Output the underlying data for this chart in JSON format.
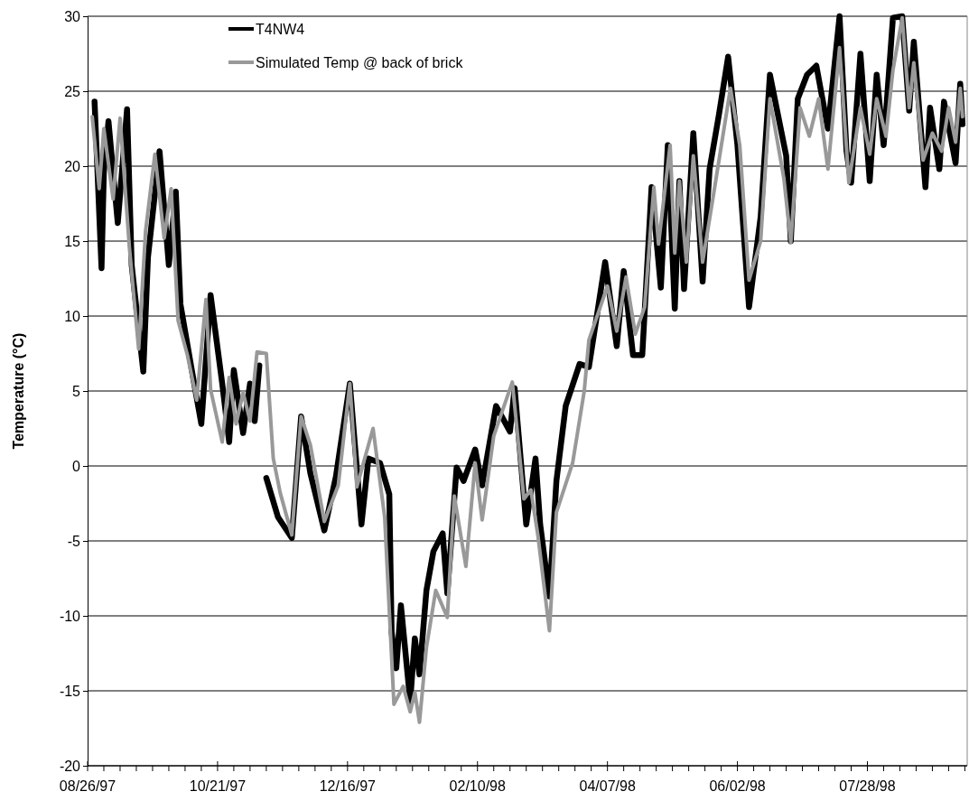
{
  "chart_data": {
    "type": "line",
    "ylabel": "Temperature (°C)",
    "legend": "top",
    "grid": "y",
    "line_style": "solid",
    "marker": "none",
    "xlim": [
      "1997-08-26",
      "1998-09-09"
    ],
    "ylim": [
      -20,
      30
    ],
    "yticks": [
      -20,
      -15,
      -10,
      -5,
      0,
      5,
      10,
      15,
      20,
      25,
      30
    ],
    "xticks": [
      {
        "value": "1997-08-26",
        "label": "08/26/97"
      },
      {
        "value": "1997-09-02",
        "label": null
      },
      {
        "value": "1997-09-09",
        "label": null
      },
      {
        "value": "1997-09-16",
        "label": null
      },
      {
        "value": "1997-09-23",
        "label": null
      },
      {
        "value": "1997-09-30",
        "label": null
      },
      {
        "value": "1997-10-07",
        "label": null
      },
      {
        "value": "1997-10-14",
        "label": null
      },
      {
        "value": "1997-10-21",
        "label": "10/21/97"
      },
      {
        "value": "1997-10-28",
        "label": null
      },
      {
        "value": "1997-11-04",
        "label": null
      },
      {
        "value": "1997-11-11",
        "label": null
      },
      {
        "value": "1997-11-18",
        "label": null
      },
      {
        "value": "1997-11-25",
        "label": null
      },
      {
        "value": "1997-12-02",
        "label": null
      },
      {
        "value": "1997-12-09",
        "label": null
      },
      {
        "value": "1997-12-16",
        "label": "12/16/97"
      },
      {
        "value": "1997-12-23",
        "label": null
      },
      {
        "value": "1997-12-30",
        "label": null
      },
      {
        "value": "1998-01-06",
        "label": null
      },
      {
        "value": "1998-01-13",
        "label": null
      },
      {
        "value": "1998-01-20",
        "label": null
      },
      {
        "value": "1998-01-27",
        "label": null
      },
      {
        "value": "1998-02-03",
        "label": null
      },
      {
        "value": "1998-02-10",
        "label": "02/10/98"
      },
      {
        "value": "1998-02-17",
        "label": null
      },
      {
        "value": "1998-02-24",
        "label": null
      },
      {
        "value": "1998-03-03",
        "label": null
      },
      {
        "value": "1998-03-10",
        "label": null
      },
      {
        "value": "1998-03-17",
        "label": null
      },
      {
        "value": "1998-03-24",
        "label": null
      },
      {
        "value": "1998-03-31",
        "label": null
      },
      {
        "value": "1998-04-07",
        "label": "04/07/98"
      },
      {
        "value": "1998-04-14",
        "label": null
      },
      {
        "value": "1998-04-21",
        "label": null
      },
      {
        "value": "1998-04-28",
        "label": null
      },
      {
        "value": "1998-05-05",
        "label": null
      },
      {
        "value": "1998-05-12",
        "label": null
      },
      {
        "value": "1998-05-19",
        "label": null
      },
      {
        "value": "1998-05-26",
        "label": null
      },
      {
        "value": "1998-06-02",
        "label": "06/02/98"
      },
      {
        "value": "1998-06-09",
        "label": null
      },
      {
        "value": "1998-06-16",
        "label": null
      },
      {
        "value": "1998-06-23",
        "label": null
      },
      {
        "value": "1998-06-30",
        "label": null
      },
      {
        "value": "1998-07-07",
        "label": null
      },
      {
        "value": "1998-07-14",
        "label": null
      },
      {
        "value": "1998-07-21",
        "label": null
      },
      {
        "value": "1998-07-28",
        "label": "07/28/98"
      },
      {
        "value": "1998-08-04",
        "label": null
      },
      {
        "value": "1998-08-11",
        "label": null
      },
      {
        "value": "1998-08-18",
        "label": null
      },
      {
        "value": "1998-08-25",
        "label": null
      },
      {
        "value": "1998-09-01",
        "label": null
      },
      {
        "value": "1998-09-08",
        "label": null
      }
    ],
    "series": [
      {
        "name": "T4NW4",
        "color": "#000000",
        "x": [
          "1997-08-29",
          "1997-09-01",
          "1997-09-02",
          "1997-09-04",
          "1997-09-08",
          "1997-09-12",
          "1997-09-14",
          "1997-09-19",
          "1997-09-21",
          "1997-09-26",
          "1997-09-30",
          "1997-10-03",
          "1997-10-05",
          "1997-10-10",
          "1997-10-14",
          "1997-10-18",
          "1997-10-23",
          "1997-10-26",
          "1997-10-28",
          "1997-11-01",
          "1997-11-04",
          "1997-11-06",
          "1997-11-08",
          "1997-11-09",
          "1997-11-11",
          "1997-11-16",
          "1997-11-22",
          "1997-11-26",
          "1997-11-30",
          "1997-12-06",
          "1997-12-11",
          "1997-12-17",
          "1997-12-22",
          "1997-12-25",
          "1997-12-30",
          "1998-01-03",
          "1998-01-04",
          "1998-01-06",
          "1998-01-08",
          "1998-01-12",
          "1998-01-14",
          "1998-01-16",
          "1998-01-19",
          "1998-01-22",
          "1998-01-26",
          "1998-01-28",
          "1998-02-01",
          "1998-02-04",
          "1998-02-09",
          "1998-02-12",
          "1998-02-18",
          "1998-02-24",
          "1998-02-26",
          "1998-03-03",
          "1998-03-07",
          "1998-03-09",
          "1998-03-13",
          "1998-03-16",
          "1998-03-20",
          "1998-03-26",
          "1998-03-30",
          "1998-04-06",
          "1998-04-11",
          "1998-04-14",
          "1998-04-18",
          "1998-04-22",
          "1998-04-26",
          "1998-04-30",
          "1998-05-03",
          "1998-05-06",
          "1998-05-08",
          "1998-05-10",
          "1998-05-14",
          "1998-05-18",
          "1998-05-21",
          "1998-05-25",
          "1998-05-29",
          "1998-06-02",
          "1998-06-07",
          "1998-06-12",
          "1998-06-16",
          "1998-06-23",
          "1998-06-25",
          "1998-06-28",
          "1998-07-02",
          "1998-07-06",
          "1998-07-11",
          "1998-07-16",
          "1998-07-19",
          "1998-07-21",
          "1998-07-25",
          "1998-07-29",
          "1998-08-01",
          "1998-08-04",
          "1998-08-08",
          "1998-08-12",
          "1998-08-15",
          "1998-08-17",
          "1998-08-22",
          "1998-08-24",
          "1998-08-28",
          "1998-08-30",
          "1998-09-04",
          "1998-09-06",
          "1998-09-07"
        ],
        "values": [
          24.3,
          13.2,
          19.6,
          23.0,
          16.2,
          23.8,
          13.4,
          6.3,
          13.9,
          21.0,
          13.4,
          18.3,
          10.8,
          6.3,
          2.8,
          11.4,
          5.5,
          1.6,
          6.4,
          2.2,
          5.5,
          3.0,
          6.7,
          null,
          -0.8,
          -3.4,
          -4.8,
          3.3,
          -0.5,
          -4.3,
          -0.7,
          5.5,
          -3.9,
          0.5,
          0.2,
          -1.9,
          -11.1,
          -13.5,
          -9.3,
          -15.7,
          -11.5,
          -13.9,
          -8.3,
          -5.7,
          -4.5,
          -8.5,
          -0.1,
          -1.0,
          1.1,
          -1.3,
          4.0,
          2.3,
          5.2,
          -3.9,
          0.5,
          -3.9,
          -8.7,
          -1.0,
          4.0,
          6.8,
          6.6,
          13.6,
          8.0,
          13.0,
          7.4,
          7.4,
          18.6,
          11.9,
          21.4,
          10.5,
          19.0,
          11.8,
          22.2,
          12.3,
          19.8,
          23.4,
          27.3,
          21.4,
          10.6,
          16.6,
          26.1,
          20.7,
          15.0,
          24.5,
          26.1,
          26.7,
          22.5,
          30.0,
          21.0,
          18.9,
          27.5,
          19.0,
          26.1,
          21.4,
          29.9,
          30.0,
          23.7,
          28.3,
          18.6,
          23.9,
          19.8,
          24.3,
          20.2,
          25.5,
          22.8
        ]
      },
      {
        "name": "Simulated Temp @ back of brick",
        "color": "#999999",
        "x": [
          "1997-08-28",
          "1997-08-31",
          "1997-09-02",
          "1997-09-06",
          "1997-09-09",
          "1997-09-13",
          "1997-09-17",
          "1997-09-20",
          "1997-09-24",
          "1997-09-28",
          "1997-10-01",
          "1997-10-04",
          "1997-10-08",
          "1997-10-12",
          "1997-10-16",
          "1997-10-18",
          "1997-10-23",
          "1997-10-26",
          "1997-10-29",
          "1997-11-01",
          "1997-11-04",
          "1997-11-07",
          "1997-11-11",
          "1997-11-14",
          "1997-11-17",
          "1997-11-22",
          "1997-11-26",
          "1997-11-30",
          "1997-12-06",
          "1997-12-12",
          "1997-12-17",
          "1997-12-20",
          "1997-12-27",
          "1998-01-01",
          "1998-01-05",
          "1998-01-09",
          "1998-01-12",
          "1998-01-14",
          "1998-01-16",
          "1998-01-19",
          "1998-01-23",
          "1998-01-28",
          "1998-01-31",
          "1998-02-05",
          "1998-02-09",
          "1998-02-12",
          "1998-02-17",
          "1998-02-21",
          "1998-02-25",
          "1998-03-02",
          "1998-03-05",
          "1998-03-08",
          "1998-03-13",
          "1998-03-16",
          "1998-03-23",
          "1998-03-28",
          "1998-03-30",
          "1998-04-07",
          "1998-04-11",
          "1998-04-15",
          "1998-04-19",
          "1998-04-23",
          "1998-04-27",
          "1998-04-29",
          "1998-05-04",
          "1998-05-06",
          "1998-05-08",
          "1998-05-11",
          "1998-05-14",
          "1998-05-18",
          "1998-05-23",
          "1998-05-30",
          "1998-06-03",
          "1998-06-07",
          "1998-06-12",
          "1998-06-16",
          "1998-06-22",
          "1998-06-25",
          "1998-06-29",
          "1998-07-03",
          "1998-07-07",
          "1998-07-11",
          "1998-07-16",
          "1998-07-20",
          "1998-07-25",
          "1998-07-29",
          "1998-08-01",
          "1998-08-05",
          "1998-08-08",
          "1998-08-12",
          "1998-08-15",
          "1998-08-17",
          "1998-08-21",
          "1998-08-25",
          "1998-08-29",
          "1998-09-01",
          "1998-09-04",
          "1998-09-06",
          "1998-09-07"
        ],
        "values": [
          23.3,
          18.5,
          22.5,
          17.8,
          23.2,
          14.6,
          7.8,
          15.7,
          20.8,
          15.2,
          18.5,
          9.7,
          7.4,
          4.4,
          11.1,
          5.1,
          1.6,
          5.9,
          2.8,
          4.9,
          3.0,
          7.6,
          7.5,
          0.5,
          -1.8,
          -4.6,
          3.3,
          1.4,
          -3.7,
          -1.3,
          5.5,
          -1.4,
          2.5,
          -3.4,
          -15.9,
          -14.7,
          -16.4,
          -15.1,
          -17.1,
          -12.1,
          -8.3,
          -10.1,
          -2.0,
          -6.7,
          0.2,
          -3.6,
          2.0,
          3.8,
          5.6,
          -2.2,
          -1.6,
          -4.6,
          -11.0,
          -3.1,
          0.2,
          5.0,
          8.4,
          12.0,
          9.0,
          12.6,
          8.8,
          10.6,
          18.6,
          14.8,
          21.4,
          14.2,
          19.0,
          13.6,
          20.7,
          13.6,
          18.4,
          25.2,
          21.4,
          12.4,
          15.0,
          24.5,
          19.2,
          14.9,
          23.9,
          22.0,
          24.5,
          19.8,
          27.9,
          18.9,
          23.9,
          20.8,
          24.5,
          22.0,
          26.4,
          29.9,
          23.9,
          26.9,
          20.4,
          22.2,
          21.0,
          23.9,
          21.6,
          25.2,
          23.3
        ]
      }
    ]
  }
}
